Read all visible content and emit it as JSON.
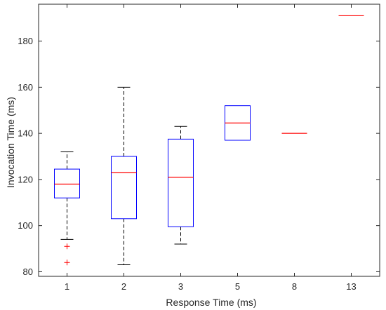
{
  "chart_data": {
    "type": "boxplot",
    "xlabel": "Response Time (ms)",
    "ylabel": "Invocation Time (ms)",
    "ylim": [
      78,
      196
    ],
    "yticks": [
      80,
      100,
      120,
      140,
      160,
      180
    ],
    "grid": false,
    "categories": [
      "1",
      "2",
      "3",
      "5",
      "8",
      "13"
    ],
    "boxes": [
      {
        "category": "1",
        "whisker_low": 94,
        "q1": 112,
        "median": 118,
        "q3": 124.5,
        "whisker_high": 132,
        "outliers": [
          91,
          84
        ]
      },
      {
        "category": "2",
        "whisker_low": 83,
        "q1": 103,
        "median": 123,
        "q3": 130,
        "whisker_high": 160,
        "outliers": []
      },
      {
        "category": "3",
        "whisker_low": 92,
        "q1": 99.5,
        "median": 121,
        "q3": 137.5,
        "whisker_high": 143,
        "outliers": []
      },
      {
        "category": "5",
        "whisker_low": 137,
        "q1": 137,
        "median": 144.5,
        "q3": 152,
        "whisker_high": 152,
        "outliers": []
      },
      {
        "category": "8",
        "whisker_low": 140,
        "q1": 140,
        "median": 140,
        "q3": 140,
        "whisker_high": 140,
        "outliers": []
      },
      {
        "category": "13",
        "whisker_low": 191,
        "q1": 191,
        "median": 191,
        "q3": 191,
        "whisker_high": 191,
        "outliers": []
      }
    ],
    "colors": {
      "box": "#0000ff",
      "median": "#ff0000",
      "whisker": "#000000",
      "outlier": "#ff0000",
      "axis": "#262626"
    }
  }
}
